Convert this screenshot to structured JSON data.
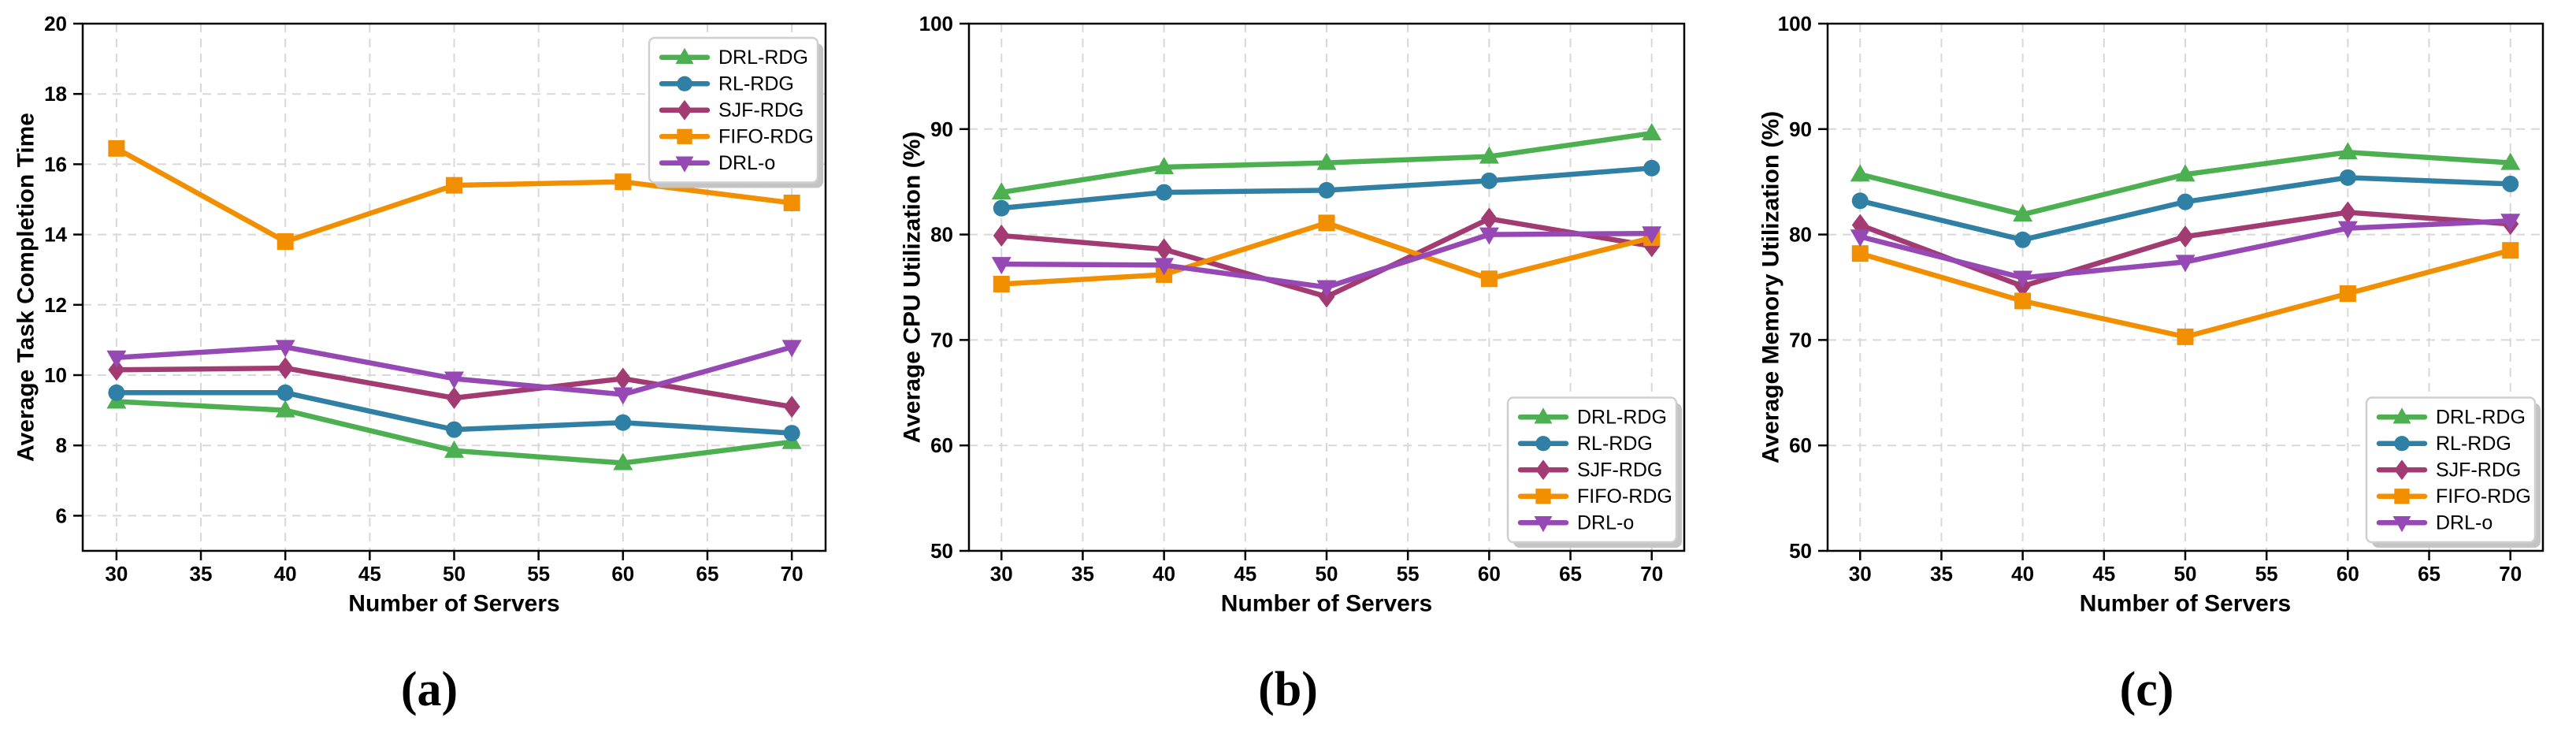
{
  "figure": {
    "background": "#ffffff",
    "grid_color": "#d8d8d8",
    "spine_color": "#000000",
    "legend_border_color": "#cfcfcf",
    "legend_shadow_color": "#c4c4c4"
  },
  "chart_data": [
    {
      "type": "line",
      "caption": "(a)",
      "xlabel": "Number of Servers",
      "ylabel": "Average Task Completion Time",
      "x": [
        30,
        40,
        50,
        60,
        70
      ],
      "xlim": [
        28,
        72
      ],
      "ylim": [
        5,
        20
      ],
      "xticks": [
        30,
        35,
        40,
        45,
        50,
        55,
        60,
        65,
        70
      ],
      "yticks": [
        6,
        8,
        10,
        12,
        14,
        16,
        18,
        20
      ],
      "grid": true,
      "legend_position": "top-right",
      "series": [
        {
          "name": "DRL-RDG",
          "color": "#4CAF50",
          "marker": "triangle-up",
          "values": [
            9.25,
            9.0,
            7.85,
            7.5,
            8.1
          ]
        },
        {
          "name": "RL-RDG",
          "color": "#2F80A4",
          "marker": "circle",
          "values": [
            9.5,
            9.5,
            8.45,
            8.65,
            8.35
          ]
        },
        {
          "name": "SJF-RDG",
          "color": "#A23B72",
          "marker": "diamond",
          "values": [
            10.15,
            10.2,
            9.35,
            9.9,
            9.1
          ]
        },
        {
          "name": "FIFO-RDG",
          "color": "#F18F01",
          "marker": "square",
          "values": [
            16.45,
            13.8,
            15.4,
            15.5,
            14.9
          ]
        },
        {
          "name": "DRL-o",
          "color": "#9649B4",
          "marker": "triangle-down",
          "values": [
            10.5,
            10.8,
            9.9,
            9.45,
            10.8
          ]
        }
      ]
    },
    {
      "type": "line",
      "caption": "(b)",
      "xlabel": "Number of Servers",
      "ylabel": "Average CPU Utilization (%)",
      "x": [
        30,
        40,
        50,
        60,
        70
      ],
      "xlim": [
        28,
        72
      ],
      "ylim": [
        50,
        100
      ],
      "xticks": [
        30,
        35,
        40,
        45,
        50,
        55,
        60,
        65,
        70
      ],
      "yticks": [
        50,
        60,
        70,
        80,
        90,
        100
      ],
      "grid": true,
      "legend_position": "bottom-right",
      "series": [
        {
          "name": "DRL-RDG",
          "color": "#4CAF50",
          "marker": "triangle-up",
          "values": [
            84.0,
            86.4,
            86.8,
            87.4,
            89.6
          ]
        },
        {
          "name": "RL-RDG",
          "color": "#2F80A4",
          "marker": "circle",
          "values": [
            82.5,
            84.0,
            84.2,
            85.1,
            86.3
          ]
        },
        {
          "name": "SJF-RDG",
          "color": "#A23B72",
          "marker": "diamond",
          "values": [
            79.9,
            78.6,
            74.1,
            81.5,
            78.9
          ]
        },
        {
          "name": "FIFO-RDG",
          "color": "#F18F01",
          "marker": "square",
          "values": [
            75.3,
            76.2,
            81.1,
            75.8,
            79.7
          ]
        },
        {
          "name": "DRL-o",
          "color": "#9649B4",
          "marker": "triangle-down",
          "values": [
            77.2,
            77.1,
            75.0,
            80.0,
            80.1
          ]
        }
      ]
    },
    {
      "type": "line",
      "caption": "(c)",
      "xlabel": "Number of Servers",
      "ylabel": "Average Memory Utilization (%)",
      "x": [
        30,
        40,
        50,
        60,
        70
      ],
      "xlim": [
        28,
        72
      ],
      "ylim": [
        50,
        100
      ],
      "xticks": [
        30,
        35,
        40,
        45,
        50,
        55,
        60,
        65,
        70
      ],
      "yticks": [
        50,
        60,
        70,
        80,
        90,
        100
      ],
      "grid": true,
      "legend_position": "bottom-right",
      "series": [
        {
          "name": "DRL-RDG",
          "color": "#4CAF50",
          "marker": "triangle-up",
          "values": [
            85.7,
            81.9,
            85.7,
            87.8,
            86.8
          ]
        },
        {
          "name": "RL-RDG",
          "color": "#2F80A4",
          "marker": "circle",
          "values": [
            83.2,
            79.5,
            83.1,
            85.4,
            84.8
          ]
        },
        {
          "name": "SJF-RDG",
          "color": "#A23B72",
          "marker": "diamond",
          "values": [
            80.9,
            75.1,
            79.8,
            82.1,
            81.0
          ]
        },
        {
          "name": "FIFO-RDG",
          "color": "#F18F01",
          "marker": "square",
          "values": [
            78.2,
            73.7,
            70.3,
            74.4,
            78.5
          ]
        },
        {
          "name": "DRL-o",
          "color": "#9649B4",
          "marker": "triangle-down",
          "values": [
            79.8,
            75.9,
            77.4,
            80.6,
            81.3
          ]
        }
      ]
    }
  ]
}
